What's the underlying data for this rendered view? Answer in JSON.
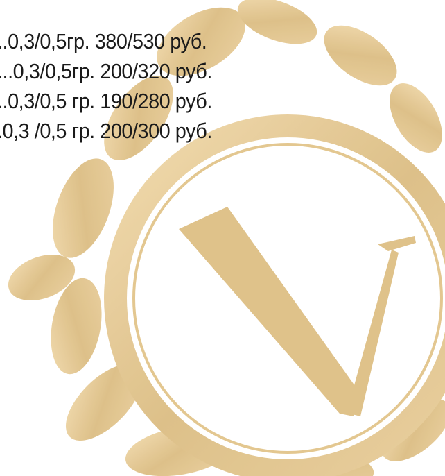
{
  "menu": {
    "items": [
      "..0,3/0,5гр. 380/530 руб.",
      "...0,3/0,5гр. 200/320 руб.",
      "..0,3/0,5 гр. 190/280 руб.",
      ".0,3 /0,5 гр. 200/300 руб."
    ]
  }
}
